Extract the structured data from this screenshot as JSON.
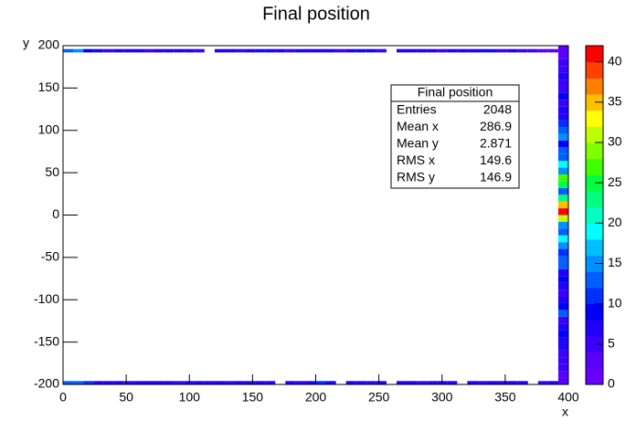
{
  "chart_data": {
    "type": "heatmap",
    "title": "Final position",
    "x_label": "x",
    "y_label": "y",
    "xlim": [
      0,
      400
    ],
    "ylim": [
      -200,
      200
    ],
    "zlim": [
      0,
      42
    ],
    "xticks": [
      0,
      50,
      100,
      150,
      200,
      250,
      300,
      350,
      400
    ],
    "yticks": [
      -200,
      -150,
      -100,
      -50,
      0,
      50,
      100,
      150,
      200
    ],
    "zticks": [
      0,
      5,
      10,
      15,
      20,
      25,
      30,
      35,
      40
    ],
    "bin_width": 8,
    "palette": [
      "#6a00ff",
      "#5a00ff",
      "#3c00ff",
      "#2000ff",
      "#0000ff",
      "#0030ff",
      "#0060ff",
      "#0090ff",
      "#00c0ff",
      "#00ffff",
      "#00ffc0",
      "#00ff80",
      "#00ff40",
      "#40ff00",
      "#80ff00",
      "#c0ff00",
      "#ffff00",
      "#ffc000",
      "#ff8000",
      "#ff4000",
      "#ff0000"
    ],
    "rows": [
      {
        "y": 192,
        "values": [
          12,
          14,
          8,
          6,
          5,
          6,
          7,
          6,
          5,
          6,
          6,
          7,
          6,
          5,
          null,
          6,
          6,
          5,
          6,
          7,
          6,
          6,
          5,
          6,
          6,
          7,
          6,
          5,
          6,
          6,
          6,
          5,
          null,
          6,
          6,
          7,
          6,
          5,
          6,
          6,
          6,
          7,
          6,
          5,
          6,
          4,
          4,
          3,
          3,
          3
        ]
      },
      {
        "y": -200,
        "values": [
          13,
          12,
          11,
          7,
          6,
          6,
          5,
          6,
          7,
          6,
          6,
          5,
          6,
          7,
          6,
          6,
          5,
          6,
          6,
          7,
          6,
          null,
          6,
          5,
          6,
          11,
          6,
          null,
          6,
          6,
          5,
          6,
          null,
          6,
          6,
          5,
          6,
          7,
          6,
          null,
          6,
          5,
          6,
          6,
          7,
          6,
          null,
          5,
          6,
          4
        ]
      }
    ],
    "columns": [
      {
        "x": 392,
        "values": [
          3,
          3,
          4,
          4,
          5,
          6,
          7,
          8,
          6,
          5,
          12,
          8,
          6,
          5,
          7,
          9,
          6,
          13,
          12,
          10,
          14,
          18,
          12,
          15,
          30,
          40,
          35,
          22,
          13,
          24,
          26,
          14,
          18,
          13,
          12,
          8,
          15,
          12,
          10,
          7,
          6,
          5,
          8,
          4,
          5,
          6,
          4,
          5,
          3,
          3
        ]
      }
    ],
    "stats": {
      "title": "Final position",
      "rows": [
        {
          "label": "Entries",
          "value": 2048
        },
        {
          "label": "Mean x",
          "value": 286.9
        },
        {
          "label": "Mean y",
          "value": 2.871
        },
        {
          "label": "RMS x",
          "value": 149.6
        },
        {
          "label": "RMS y",
          "value": 146.9
        }
      ]
    }
  }
}
